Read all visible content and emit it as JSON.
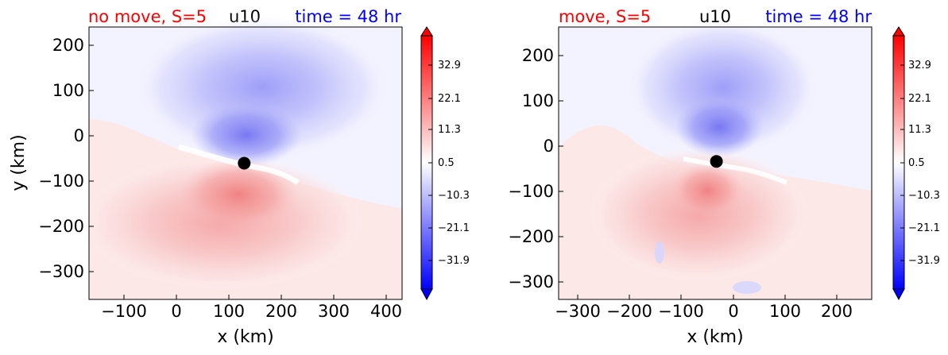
{
  "chart_data": [
    {
      "type": "heatmap",
      "titles": {
        "left": "no move, S=5",
        "center": "u10",
        "right": "time = 48 hr"
      },
      "title_colors": {
        "left": "#ff0000",
        "center": "#000000",
        "right": "#0000ff"
      },
      "xlabel": "x (km)",
      "ylabel": "y (km)",
      "xlim": [
        -165,
        430
      ],
      "ylim": [
        -360,
        240
      ],
      "xticks": [
        -100,
        0,
        100,
        200,
        300,
        400
      ],
      "xtick_labels": [
        "−100",
        "0",
        "100",
        "200",
        "300",
        "400"
      ],
      "yticks": [
        200,
        100,
        0,
        -100,
        -200,
        -300
      ],
      "ytick_labels": [
        "200",
        "100",
        "0",
        "−100",
        "−200",
        "−300"
      ],
      "center_marker": {
        "x": 130,
        "y": -60
      },
      "colorbar": {
        "ticks": [
          32.9,
          22.1,
          11.3,
          0.5,
          -10.3,
          -21.1,
          -31.9
        ],
        "tick_labels": [
          "32.9",
          "22.1",
          "11.3",
          "0.5",
          "−10.3",
          "−21.1",
          "−31.9"
        ],
        "range": [
          -37.3,
          38.3
        ],
        "colormap": "bwr"
      }
    },
    {
      "type": "heatmap",
      "titles": {
        "left": "move, S=5",
        "center": "u10",
        "right": "time = 48 hr"
      },
      "title_colors": {
        "left": "#ff0000",
        "center": "#000000",
        "right": "#0000ff"
      },
      "xlabel": "x (km)",
      "ylabel": "",
      "xlim": [
        -340,
        265
      ],
      "ylim": [
        -340,
        262
      ],
      "xticks": [
        -300,
        -200,
        -100,
        0,
        100,
        200
      ],
      "xtick_labels": [
        "−300",
        "−200",
        "−100",
        "0",
        "100",
        "200"
      ],
      "yticks": [
        200,
        100,
        0,
        -100,
        -200,
        -300
      ],
      "ytick_labels": [
        "200",
        "100",
        "0",
        "−100",
        "−200",
        "−300"
      ],
      "center_marker": {
        "x": -35,
        "y": -35
      },
      "colorbar": {
        "ticks": [
          32.9,
          22.1,
          11.3,
          0.5,
          -10.3,
          -21.1,
          -31.9
        ],
        "tick_labels": [
          "32.9",
          "22.1",
          "11.3",
          "0.5",
          "−10.3",
          "−21.1",
          "−31.9"
        ],
        "range": [
          -37.3,
          38.3
        ],
        "colormap": "bwr"
      }
    }
  ]
}
